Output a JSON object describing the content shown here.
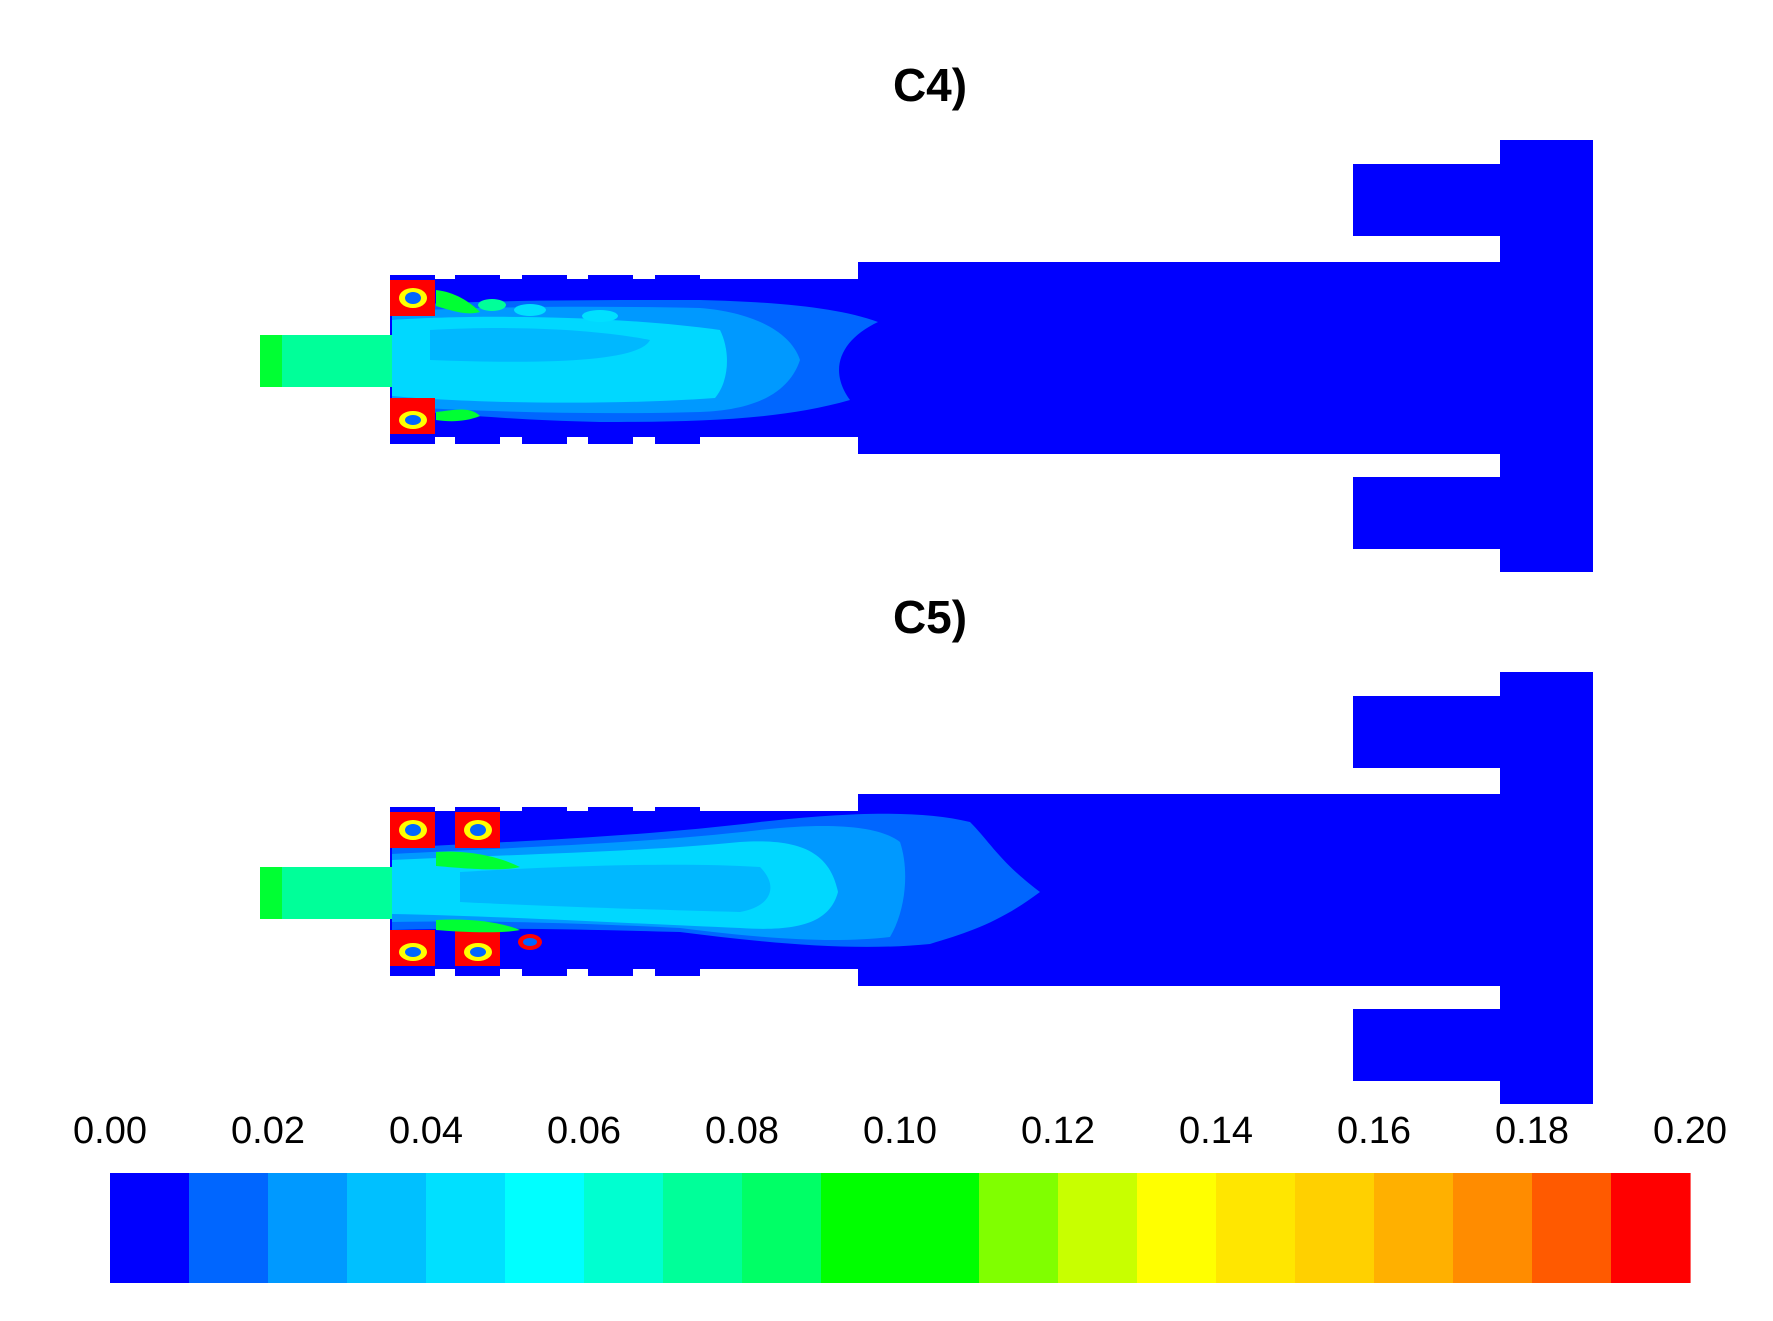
{
  "figure": {
    "panels": [
      {
        "title": "C4)",
        "jet_reach": "short"
      },
      {
        "title": "C5)",
        "jet_reach": "long"
      }
    ]
  },
  "colorbar": {
    "tick_labels": [
      "0.00",
      "0.02",
      "0.04",
      "0.06",
      "0.08",
      "0.10",
      "0.12",
      "0.14",
      "0.16",
      "0.18",
      "0.20"
    ],
    "min": 0.0,
    "max": 0.2,
    "bands": 20,
    "colors": [
      "#0000ff",
      "#0066ff",
      "#0099ff",
      "#00c0ff",
      "#00e0ff",
      "#00ffff",
      "#00ffd0",
      "#00ff99",
      "#00ff66",
      "#00ff00",
      "#00ff00",
      "#80ff00",
      "#c8ff00",
      "#ffff00",
      "#ffe600",
      "#ffd000",
      "#ffb000",
      "#ff8c00",
      "#ff5a00",
      "#ff0000"
    ]
  },
  "colors": {
    "background": "#0000ff",
    "inlet": "#00ff66",
    "jet_core": "#00e8ff",
    "jet_mid": "#0099ff",
    "jet_outer": "#0066ff",
    "hot": "#ff0000",
    "warm": "#ffff00",
    "green": "#00ff33"
  }
}
